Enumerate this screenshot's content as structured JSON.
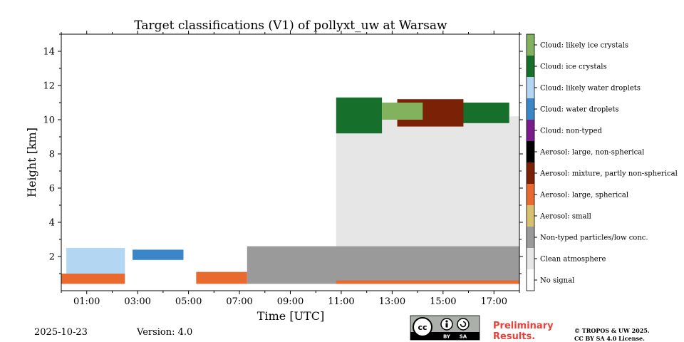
{
  "chart_data": {
    "type": "heatmap",
    "title": "Target classifications (V1) of pollyxt_uw at Warsaw",
    "xlabel": "Time [UTC]",
    "ylabel": "Height [km]",
    "xlim": [
      0,
      18
    ],
    "ylim": [
      0,
      15
    ],
    "x_ticks": [
      {
        "value": 1,
        "label": "01:00"
      },
      {
        "value": 3,
        "label": "03:00"
      },
      {
        "value": 5,
        "label": "05:00"
      },
      {
        "value": 7,
        "label": "07:00"
      },
      {
        "value": 9,
        "label": "09:00"
      },
      {
        "value": 11,
        "label": "11:00"
      },
      {
        "value": 13,
        "label": "13:00"
      },
      {
        "value": 15,
        "label": "15:00"
      },
      {
        "value": 17,
        "label": "17:00"
      }
    ],
    "y_ticks": [
      {
        "value": 2,
        "label": "2"
      },
      {
        "value": 4,
        "label": "4"
      },
      {
        "value": 6,
        "label": "6"
      },
      {
        "value": 8,
        "label": "8"
      },
      {
        "value": 10,
        "label": "10"
      },
      {
        "value": 12,
        "label": "12"
      },
      {
        "value": 14,
        "label": "14"
      }
    ],
    "classes": [
      {
        "label": "No signal",
        "color": "#ffffff"
      },
      {
        "label": "Clean atmosphere",
        "color": "#e6e6e6"
      },
      {
        "label": "Non-typed particles/low conc.",
        "color": "#9a9a9a"
      },
      {
        "label": "Aerosol: small",
        "color": "#d7c06f"
      },
      {
        "label": "Aerosol: large, spherical",
        "color": "#e86a2e"
      },
      {
        "label": "Aerosol: mixture, partly non-spherical",
        "color": "#7a2106"
      },
      {
        "label": "Aerosol: large, non-spherical",
        "color": "#000000"
      },
      {
        "label": "Cloud: non-typed",
        "color": "#7b1c8c"
      },
      {
        "label": "Cloud: water droplets",
        "color": "#3b86c6"
      },
      {
        "label": "Cloud: likely water droplets",
        "color": "#b3d7f2"
      },
      {
        "label": "Cloud: ice crystals",
        "color": "#166f2a"
      },
      {
        "label": "Cloud: likely ice crystals",
        "color": "#82b25e"
      }
    ],
    "regions": [
      {
        "class": "Clean atmosphere",
        "x": [
          10.8,
          18.0
        ],
        "y": [
          2.4,
          10.2
        ]
      },
      {
        "class": "Non-typed particles/low conc.",
        "x": [
          7.3,
          18.0
        ],
        "y": [
          0.4,
          2.6
        ]
      },
      {
        "class": "Aerosol: large, spherical",
        "x": [
          0.0,
          2.5
        ],
        "y": [
          0.4,
          1.0
        ]
      },
      {
        "class": "Aerosol: large, spherical",
        "x": [
          5.3,
          7.3
        ],
        "y": [
          0.4,
          1.1
        ]
      },
      {
        "class": "Aerosol: large, spherical",
        "x": [
          10.8,
          18.0
        ],
        "y": [
          0.4,
          0.6
        ]
      },
      {
        "class": "Cloud: likely water droplets",
        "x": [
          0.2,
          2.5
        ],
        "y": [
          1.0,
          2.5
        ]
      },
      {
        "class": "Cloud: water droplets",
        "x": [
          2.8,
          4.8
        ],
        "y": [
          1.8,
          2.4
        ]
      },
      {
        "class": "Cloud: ice crystals",
        "x": [
          10.8,
          12.6
        ],
        "y": [
          9.2,
          11.3
        ]
      },
      {
        "class": "Cloud: ice crystals",
        "x": [
          15.0,
          17.6
        ],
        "y": [
          9.8,
          11.0
        ]
      },
      {
        "class": "Aerosol: mixture, partly non-spherical",
        "x": [
          13.2,
          15.8
        ],
        "y": [
          9.6,
          11.2
        ]
      },
      {
        "class": "Cloud: likely ice crystals",
        "x": [
          12.6,
          14.2
        ],
        "y": [
          10.0,
          11.0
        ]
      }
    ]
  },
  "footer": {
    "date": "2025-10-23",
    "version": "Version: 4.0",
    "preliminary_line1": "Preliminary",
    "preliminary_line2": "Results.",
    "copyright_line1": "© TROPOS & UW 2025.",
    "copyright_line2": "CC BY SA 4.0 License."
  },
  "license_badge": {
    "logo_text": "cc",
    "by_text": "BY",
    "sa_text": "SA"
  }
}
